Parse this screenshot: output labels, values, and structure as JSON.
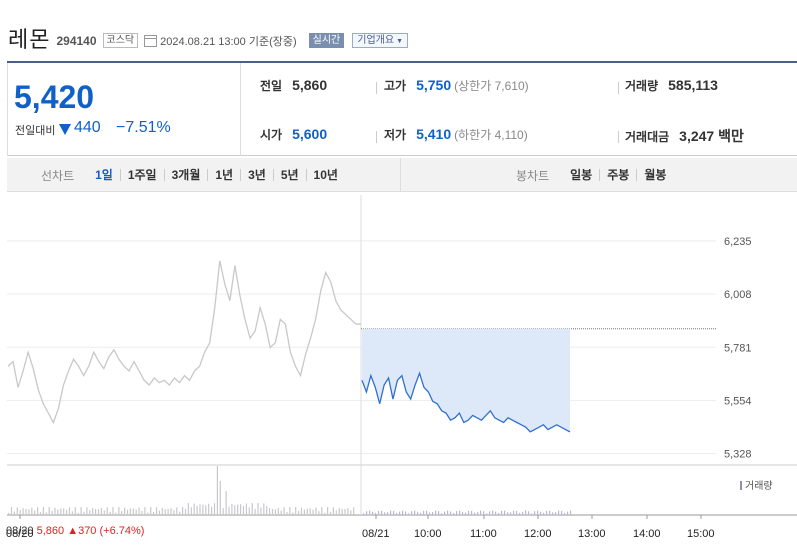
{
  "header": {
    "name": "레몬",
    "code": "294140",
    "market": "코스닥",
    "timestamp": "2024.08.21 13:00  기준(장중)",
    "realtime_label": "실시간",
    "corp_label": "기업개요"
  },
  "summary": {
    "price": "5,420",
    "change_label": "전일대비",
    "change_value": "440",
    "change_pct": "−7.51%",
    "prev_close_label": "전일",
    "prev_close": "5,860",
    "open_label": "시가",
    "open": "5,600",
    "high_label": "고가",
    "high": "5,750",
    "upper_limit": "(상한가 7,610)",
    "low_label": "저가",
    "low": "5,410",
    "lower_limit": "(하한가 4,110)",
    "volume_label": "거래량",
    "volume": "585,113",
    "amount_label": "거래대금",
    "amount": "3,247 백만"
  },
  "tabs": {
    "line_label": "선차트",
    "line_periods": [
      "1일",
      "1주일",
      "3개월",
      "1년",
      "3년",
      "5년",
      "10년"
    ],
    "active": "1일",
    "candle_label": "봉차트",
    "candle_periods": [
      "일봉",
      "주봉",
      "월봉"
    ]
  },
  "footer": {
    "prev_date": "08/20",
    "prev_price": "5,860",
    "prev_change": "▲370",
    "prev_pct": "(+6.74%)",
    "volume_legend": "거래량"
  },
  "colors": {
    "today_line": "#2f6fd0",
    "today_fill": "#dde9f8",
    "prev_line": "#c8c8c8",
    "down": "#1060c8",
    "up": "#d22222"
  },
  "chart_data": {
    "type": "line",
    "y_ticks": [
      "6,235",
      "6,008",
      "5,781",
      "5,554",
      "5,328"
    ],
    "y_tick_values": [
      6235,
      6008,
      5781,
      5554,
      5328
    ],
    "x_labels": [
      "08/20",
      "08/21",
      "10:00",
      "11:00",
      "12:00",
      "13:00",
      "14:00",
      "15:00"
    ],
    "ylim": [
      5300,
      6260
    ],
    "reference_price": 5860,
    "series": [
      {
        "values_day1": [
          5700,
          5720,
          5610,
          5680,
          5760,
          5690,
          5600,
          5540,
          5500,
          5460,
          5520,
          5620,
          5680,
          5730,
          5700,
          5660,
          5700,
          5760,
          5720,
          5690,
          5740,
          5770,
          5730,
          5700,
          5680,
          5720,
          5680,
          5640,
          5620,
          5650,
          5630,
          5640,
          5620,
          5650,
          5630,
          5660,
          5640,
          5680,
          5700,
          5760,
          5800,
          5950,
          6150,
          6050,
          5980,
          6130,
          6000,
          5900,
          5820,
          5850,
          5950,
          5880,
          5780,
          5800,
          5900,
          5880,
          5760,
          5700,
          5660,
          5750,
          5820,
          5900,
          6020,
          6100,
          6060,
          5980,
          5940,
          5920,
          5900,
          5880,
          5880
        ]
      },
      {
        "values_day2": [
          5640,
          5590,
          5660,
          5610,
          5540,
          5620,
          5650,
          5560,
          5640,
          5660,
          5590,
          5560,
          5620,
          5670,
          5610,
          5590,
          5550,
          5540,
          5510,
          5500,
          5470,
          5480,
          5500,
          5460,
          5470,
          5490,
          5480,
          5470,
          5490,
          5510,
          5480,
          5470,
          5460,
          5480,
          5470,
          5460,
          5450,
          5440,
          5420,
          5430,
          5440,
          5450,
          5430,
          5440,
          5450,
          5440,
          5430,
          5420
        ]
      }
    ]
  }
}
